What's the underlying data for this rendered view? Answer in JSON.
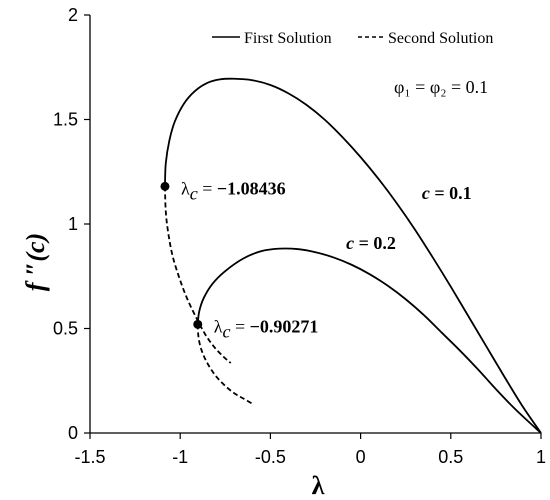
{
  "chart_data": {
    "type": "line",
    "xlabel": "λ",
    "ylabel": "f ″(c)",
    "xlim": [
      -1.5,
      1
    ],
    "ylim": [
      0,
      2
    ],
    "xticks": [
      -1.5,
      -1,
      -0.5,
      0,
      0.5,
      1
    ],
    "yticks": [
      0,
      0.5,
      1,
      1.5,
      2
    ],
    "xtick_labels": [
      "-1.5",
      "-1",
      "-0.5",
      "0",
      "0.5",
      "1"
    ],
    "ytick_labels": [
      "0",
      "0.5",
      "1",
      "1.5",
      "2"
    ],
    "grid": false,
    "legend_position": "top",
    "legend": [
      {
        "label": "First Solution",
        "style": "solid"
      },
      {
        "label": "Second Solution",
        "style": "dashed"
      }
    ],
    "param_label": "φ₁ = φ₂ = 0.1",
    "series": [
      {
        "curve": "c = 0.1",
        "solution": "first",
        "style": "solid",
        "points": [
          [
            -1.08436,
            1.18
          ],
          [
            -1.08,
            1.29
          ],
          [
            -1.06,
            1.4
          ],
          [
            -1.03,
            1.49
          ],
          [
            -0.98,
            1.575
          ],
          [
            -0.92,
            1.635
          ],
          [
            -0.85,
            1.675
          ],
          [
            -0.78,
            1.692
          ],
          [
            -0.7,
            1.695
          ],
          [
            -0.6,
            1.688
          ],
          [
            -0.5,
            1.665
          ],
          [
            -0.4,
            1.625
          ],
          [
            -0.3,
            1.57
          ],
          [
            -0.2,
            1.5
          ],
          [
            -0.1,
            1.415
          ],
          [
            0.0,
            1.32
          ],
          [
            0.1,
            1.215
          ],
          [
            0.2,
            1.1
          ],
          [
            0.3,
            0.975
          ],
          [
            0.4,
            0.84
          ],
          [
            0.5,
            0.7
          ],
          [
            0.6,
            0.555
          ],
          [
            0.7,
            0.41
          ],
          [
            0.8,
            0.265
          ],
          [
            0.9,
            0.125
          ],
          [
            1.0,
            0.0
          ]
        ]
      },
      {
        "curve": "c = 0.1",
        "solution": "second",
        "style": "dashed",
        "points": [
          [
            -1.08436,
            1.18
          ],
          [
            -1.08,
            1.06
          ],
          [
            -1.065,
            0.95
          ],
          [
            -1.04,
            0.84
          ],
          [
            -1.0,
            0.73
          ],
          [
            -0.96,
            0.64
          ],
          [
            -0.91,
            0.55
          ],
          [
            -0.86,
            0.47
          ],
          [
            -0.81,
            0.41
          ],
          [
            -0.76,
            0.365
          ],
          [
            -0.72,
            0.335
          ]
        ]
      },
      {
        "curve": "c = 0.2",
        "solution": "first",
        "style": "solid",
        "points": [
          [
            -0.90271,
            0.52
          ],
          [
            -0.895,
            0.58
          ],
          [
            -0.87,
            0.645
          ],
          [
            -0.82,
            0.715
          ],
          [
            -0.75,
            0.775
          ],
          [
            -0.65,
            0.835
          ],
          [
            -0.55,
            0.87
          ],
          [
            -0.45,
            0.882
          ],
          [
            -0.35,
            0.88
          ],
          [
            -0.25,
            0.865
          ],
          [
            -0.15,
            0.84
          ],
          [
            -0.05,
            0.805
          ],
          [
            0.05,
            0.76
          ],
          [
            0.15,
            0.705
          ],
          [
            0.25,
            0.64
          ],
          [
            0.35,
            0.565
          ],
          [
            0.45,
            0.48
          ],
          [
            0.55,
            0.395
          ],
          [
            0.65,
            0.305
          ],
          [
            0.75,
            0.21
          ],
          [
            0.85,
            0.12
          ],
          [
            0.93,
            0.055
          ],
          [
            1.0,
            0.0
          ]
        ]
      },
      {
        "curve": "c = 0.2",
        "solution": "second",
        "style": "dashed",
        "points": [
          [
            -0.90271,
            0.52
          ],
          [
            -0.9,
            0.47
          ],
          [
            -0.89,
            0.42
          ],
          [
            -0.87,
            0.37
          ],
          [
            -0.84,
            0.32
          ],
          [
            -0.8,
            0.27
          ],
          [
            -0.75,
            0.225
          ],
          [
            -0.7,
            0.19
          ],
          [
            -0.65,
            0.165
          ],
          [
            -0.6,
            0.14
          ]
        ]
      }
    ],
    "critical_points": [
      {
        "x": -1.08436,
        "y": 1.18,
        "label_prefix": "λc = ",
        "value": "−1.08436"
      },
      {
        "x": -0.90271,
        "y": 0.52,
        "label_prefix": "λc = ",
        "value": "−0.90271"
      }
    ],
    "curve_labels": [
      {
        "text_c": "c",
        "eq": " = ",
        "value": "0.1",
        "x": 0.34,
        "y": 1.12
      },
      {
        "text_c": "c",
        "eq": " = ",
        "value": "0.2",
        "x": -0.08,
        "y": 0.88
      }
    ]
  }
}
